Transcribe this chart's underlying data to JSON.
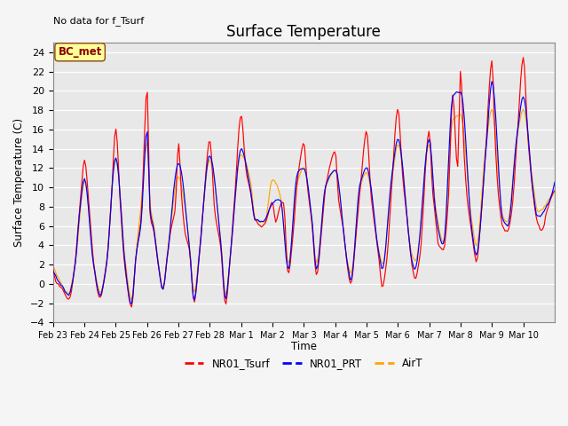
{
  "title": "Surface Temperature",
  "ylabel": "Surface Temperature (C)",
  "xlabel": "Time",
  "no_data_text": "No data for f_Tsurf",
  "bc_met_label": "BC_met",
  "ylim": [
    -4,
    25
  ],
  "yticks": [
    -4,
    -2,
    0,
    2,
    4,
    6,
    8,
    10,
    12,
    14,
    16,
    18,
    20,
    22,
    24
  ],
  "line_colors": {
    "NR01_Tsurf": "#FF0000",
    "NR01_PRT": "#0000FF",
    "AirT": "#FFA500"
  },
  "xtick_labels": [
    "Feb 23",
    "Feb 24",
    "Feb 25",
    "Feb 26",
    "Feb 27",
    "Feb 28",
    "Mar 1",
    "Mar 2",
    "Mar 3",
    "Mar 4",
    "Mar 5",
    "Mar 6",
    "Mar 7",
    "Mar 8",
    "Mar 9",
    "Mar 10"
  ],
  "bg_color": "#E8E8E8",
  "fig_bg": "#F5F5F5",
  "grid_color": "white"
}
